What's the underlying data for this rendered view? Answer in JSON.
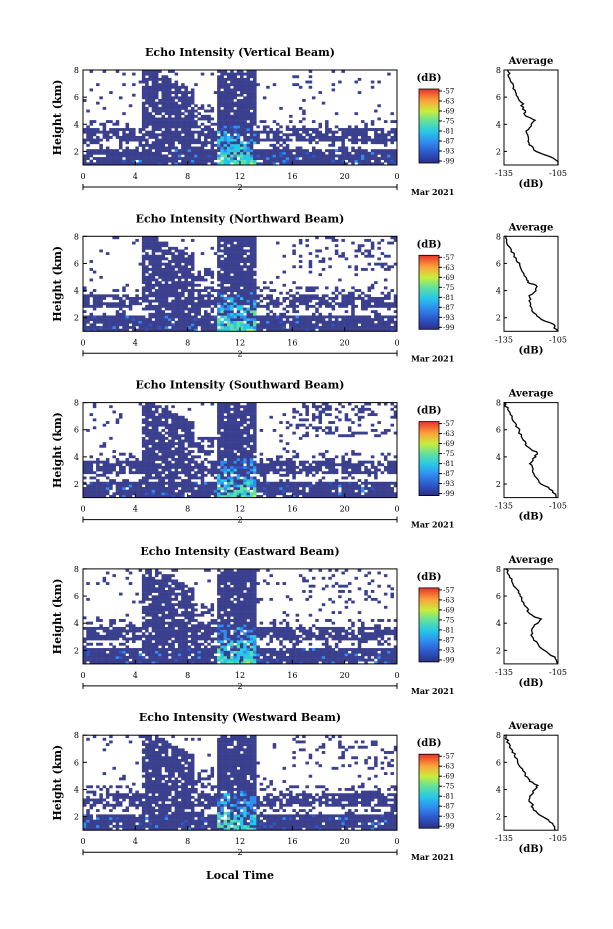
{
  "figure": {
    "xlabel": "Local Time",
    "date_label": "Mar 2021",
    "colorbar_unit": "(dB)"
  },
  "chart_data": [
    {
      "type": "heatmap",
      "title": "Echo Intensity (Vertical Beam)",
      "ylabel": "Height (km)",
      "x_ticks": [
        "0",
        "4",
        "8",
        "12",
        "16",
        "20",
        "0"
      ],
      "x_day_label": "2",
      "y_ticks": [
        "2",
        "4",
        "6",
        "8"
      ],
      "xlim": [
        0,
        24
      ],
      "ylim": [
        1,
        8
      ],
      "colorbar": {
        "label": "(dB)",
        "ticks": [
          "-57",
          "-63",
          "-69",
          "-75",
          "-81",
          "-87",
          "-93",
          "-99"
        ],
        "range": [
          -99,
          -57
        ]
      },
      "average_profile": {
        "title": "Average",
        "xlabel": "(dB)",
        "x_ticks": [
          "-135",
          "-105"
        ],
        "xlim": [
          -135,
          -105
        ],
        "y_ticks": [
          "2",
          "4",
          "6",
          "8"
        ],
        "ylim": [
          1,
          8
        ],
        "height_km": [
          1.0,
          1.5,
          2.0,
          2.5,
          3.0,
          3.5,
          4.0,
          4.3,
          4.6,
          5.0,
          5.5,
          6.0,
          6.5,
          7.0,
          7.5,
          8.0
        ],
        "values_db": [
          -104,
          -107,
          -117,
          -121,
          -121,
          -122,
          -120,
          -118,
          -123,
          -124,
          -125,
          -127,
          -129,
          -130,
          -132,
          -133
        ]
      }
    },
    {
      "type": "heatmap",
      "title": "Echo Intensity (Northward Beam)",
      "ylabel": "Height (km)",
      "x_ticks": [
        "0",
        "4",
        "8",
        "12",
        "16",
        "20",
        "0"
      ],
      "x_day_label": "2",
      "y_ticks": [
        "2",
        "4",
        "6",
        "8"
      ],
      "xlim": [
        0,
        24
      ],
      "ylim": [
        1,
        8
      ],
      "colorbar": {
        "label": "(dB)",
        "ticks": [
          "-57",
          "-63",
          "-69",
          "-75",
          "-81",
          "-87",
          "-93",
          "-99"
        ],
        "range": [
          -99,
          -57
        ]
      },
      "average_profile": {
        "title": "Average",
        "xlabel": "(dB)",
        "x_ticks": [
          "-135",
          "-105"
        ],
        "xlim": [
          -135,
          -105
        ],
        "y_ticks": [
          "2",
          "4",
          "6",
          "8"
        ],
        "ylim": [
          1,
          8
        ],
        "height_km": [
          1.0,
          1.5,
          2.0,
          2.5,
          3.0,
          3.5,
          4.0,
          4.3,
          4.6,
          5.0,
          5.5,
          6.0,
          6.5,
          7.0,
          7.5,
          8.0
        ],
        "values_db": [
          -105,
          -108,
          -116,
          -119,
          -120,
          -121,
          -118,
          -116,
          -121,
          -123,
          -125,
          -127,
          -129,
          -131,
          -133,
          -134
        ]
      }
    },
    {
      "type": "heatmap",
      "title": "Echo Intensity (Southward Beam)",
      "ylabel": "Height (km)",
      "x_ticks": [
        "0",
        "4",
        "8",
        "12",
        "16",
        "20",
        "0"
      ],
      "x_day_label": "2",
      "y_ticks": [
        "2",
        "4",
        "6",
        "8"
      ],
      "xlim": [
        0,
        24
      ],
      "ylim": [
        1,
        8
      ],
      "colorbar": {
        "label": "(dB)",
        "ticks": [
          "-57",
          "-63",
          "-69",
          "-75",
          "-81",
          "-87",
          "-93",
          "-99"
        ],
        "range": [
          -99,
          -57
        ]
      },
      "average_profile": {
        "title": "Average",
        "xlabel": "(dB)",
        "x_ticks": [
          "-135",
          "-105"
        ],
        "xlim": [
          -135,
          -105
        ],
        "y_ticks": [
          "2",
          "4",
          "6",
          "8"
        ],
        "ylim": [
          1,
          8
        ],
        "height_km": [
          1.0,
          1.5,
          2.0,
          2.5,
          3.0,
          3.5,
          4.0,
          4.3,
          4.6,
          5.0,
          5.5,
          6.0,
          6.5,
          7.0,
          7.5,
          8.0
        ],
        "values_db": [
          -106,
          -108,
          -114,
          -118,
          -119,
          -120,
          -118,
          -116,
          -121,
          -123,
          -125,
          -127,
          -129,
          -131,
          -133,
          -135
        ]
      }
    },
    {
      "type": "heatmap",
      "title": "Echo Intensity (Eastward Beam)",
      "ylabel": "Height (km)",
      "x_ticks": [
        "0",
        "4",
        "8",
        "12",
        "16",
        "20",
        "0"
      ],
      "x_day_label": "2",
      "y_ticks": [
        "2",
        "4",
        "6",
        "8"
      ],
      "xlim": [
        0,
        24
      ],
      "ylim": [
        1,
        8
      ],
      "colorbar": {
        "label": "(dB)",
        "ticks": [
          "-57",
          "-63",
          "-69",
          "-75",
          "-81",
          "-87",
          "-93",
          "-99"
        ],
        "range": [
          -99,
          -57
        ]
      },
      "average_profile": {
        "title": "Average",
        "xlabel": "(dB)",
        "x_ticks": [
          "-135",
          "-105"
        ],
        "xlim": [
          -135,
          -105
        ],
        "y_ticks": [
          "2",
          "4",
          "6",
          "8"
        ],
        "ylim": [
          1,
          8
        ],
        "height_km": [
          1.0,
          1.5,
          2.0,
          2.5,
          3.0,
          3.5,
          4.0,
          4.3,
          4.6,
          5.0,
          5.5,
          6.0,
          6.5,
          7.0,
          7.5,
          8.0
        ],
        "values_db": [
          -105,
          -107,
          -113,
          -117,
          -119,
          -120,
          -117,
          -115,
          -120,
          -122,
          -124,
          -126,
          -128,
          -130,
          -132,
          -134
        ]
      }
    },
    {
      "type": "heatmap",
      "title": "Echo Intensity (Westward Beam)",
      "ylabel": "Height (km)",
      "x_ticks": [
        "0",
        "4",
        "8",
        "12",
        "16",
        "20",
        "0"
      ],
      "x_day_label": "2",
      "y_ticks": [
        "2",
        "4",
        "6",
        "8"
      ],
      "xlim": [
        0,
        24
      ],
      "ylim": [
        1,
        8
      ],
      "colorbar": {
        "label": "(dB)",
        "ticks": [
          "-57",
          "-63",
          "-69",
          "-75",
          "-81",
          "-87",
          "-93",
          "-99"
        ],
        "range": [
          -99,
          -57
        ]
      },
      "average_profile": {
        "title": "Average",
        "xlabel": "(dB)",
        "x_ticks": [
          "-135",
          "-105"
        ],
        "xlim": [
          -135,
          -105
        ],
        "y_ticks": [
          "2",
          "4",
          "6",
          "8"
        ],
        "ylim": [
          1,
          8
        ],
        "height_km": [
          1.0,
          1.5,
          2.0,
          2.5,
          3.0,
          3.5,
          4.0,
          4.3,
          4.6,
          5.0,
          5.5,
          6.0,
          6.5,
          7.0,
          7.5,
          8.0
        ],
        "values_db": [
          -106,
          -108,
          -114,
          -118,
          -120,
          -121,
          -118,
          -116,
          -121,
          -123,
          -125,
          -127,
          -129,
          -131,
          -133,
          -134
        ]
      }
    }
  ]
}
